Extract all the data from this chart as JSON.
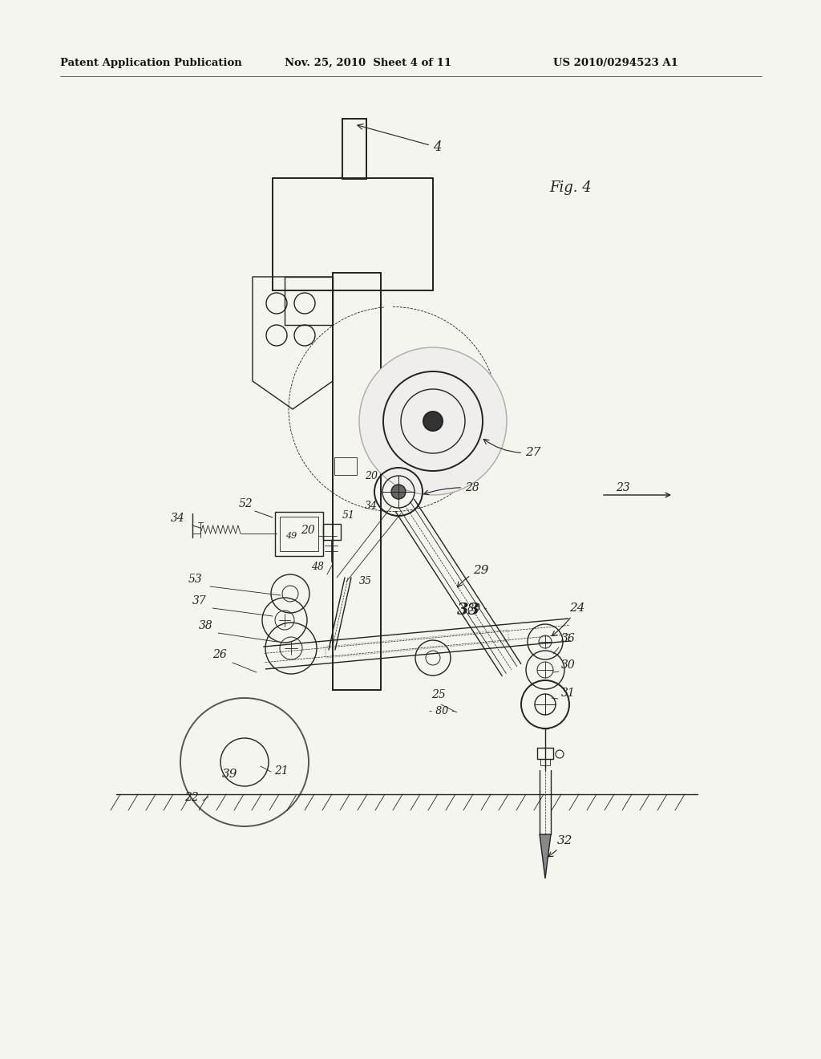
{
  "title_left": "Patent Application Publication",
  "title_center": "Nov. 25, 2010  Sheet 4 of 11",
  "title_right": "US 2010/0294523 A1",
  "background": "#f8f8f8",
  "line_color": "#222222",
  "fig_label": "Fig. 4"
}
